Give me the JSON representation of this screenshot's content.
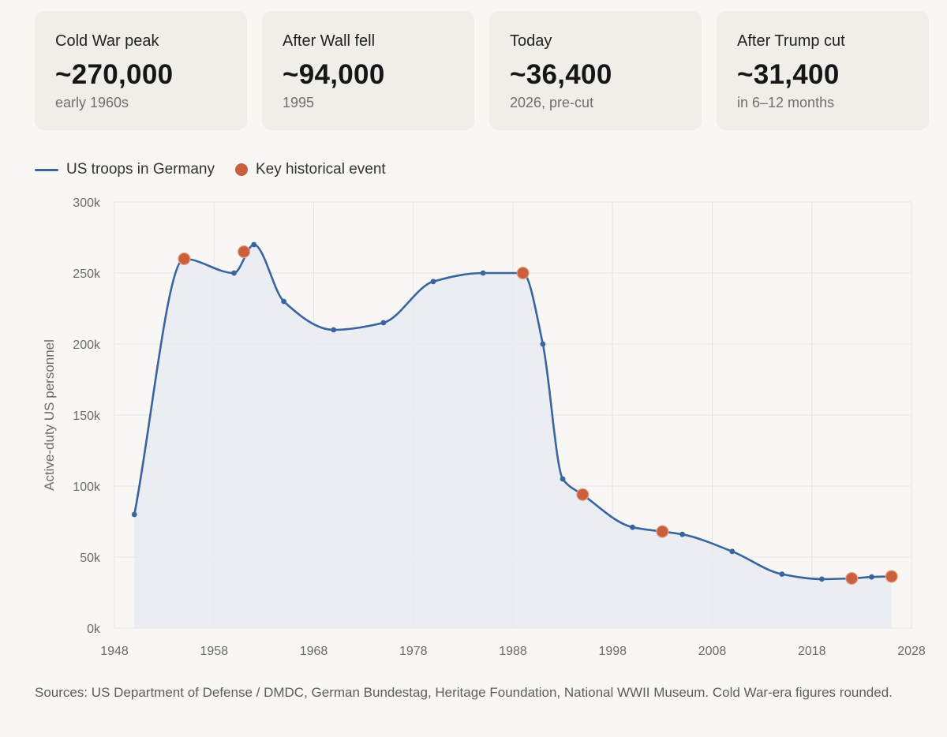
{
  "cards": [
    {
      "label": "Cold War peak",
      "value": "~270,000",
      "sub": "early 1960s"
    },
    {
      "label": "After Wall fell",
      "value": "~94,000",
      "sub": "1995"
    },
    {
      "label": "Today",
      "value": "~36,400",
      "sub": "2026, pre-cut"
    },
    {
      "label": "After Trump cut",
      "value": "~31,400",
      "sub": "in 6–12 months"
    }
  ],
  "legend": {
    "line_label": "US troops in Germany",
    "event_label": "Key historical event"
  },
  "colors": {
    "line": "#3a64a0",
    "area": "#e8ebf1",
    "event": "#c95f3d",
    "grid": "#e5e5e5"
  },
  "chart_data": {
    "type": "area",
    "ylabel": "Active-duty US personnel",
    "xlabel": "",
    "xlim": [
      1948,
      2028
    ],
    "ylim": [
      0,
      300000
    ],
    "x_ticks": [
      1948,
      1958,
      1968,
      1978,
      1988,
      1998,
      2008,
      2018,
      2028
    ],
    "x_tick_labels": [
      "1948",
      "1958",
      "1968",
      "1978",
      "1988",
      "1998",
      "2008",
      "2018",
      "2028"
    ],
    "y_ticks": [
      0,
      50000,
      100000,
      150000,
      200000,
      250000,
      300000
    ],
    "y_tick_labels": [
      "0k",
      "50k",
      "100k",
      "150k",
      "200k",
      "250k",
      "300k"
    ],
    "grid": true,
    "series": [
      {
        "name": "US troops in Germany",
        "x": [
          1950,
          1955,
          1960,
          1962,
          1965,
          1970,
          1975,
          1980,
          1985,
          1989,
          1991,
          1993,
          1995,
          2000,
          2003,
          2005,
          2010,
          2015,
          2019,
          2022,
          2024,
          2026
        ],
        "y": [
          80000,
          260000,
          250000,
          270000,
          230000,
          210000,
          215000,
          244000,
          250000,
          250000,
          200000,
          105000,
          94000,
          71000,
          68000,
          66000,
          54000,
          38000,
          34500,
          35000,
          36000,
          36400
        ]
      }
    ],
    "events": {
      "name": "Key historical event",
      "x": [
        1955,
        1961,
        1989,
        1995,
        2003,
        2022,
        2026
      ],
      "y": [
        260000,
        265000,
        250000,
        94000,
        68000,
        35000,
        36400
      ]
    }
  },
  "footnote": "Sources: US Department of Defense / DMDC, German Bundestag, Heritage Foundation, National WWII Museum. Cold War-era figures rounded."
}
